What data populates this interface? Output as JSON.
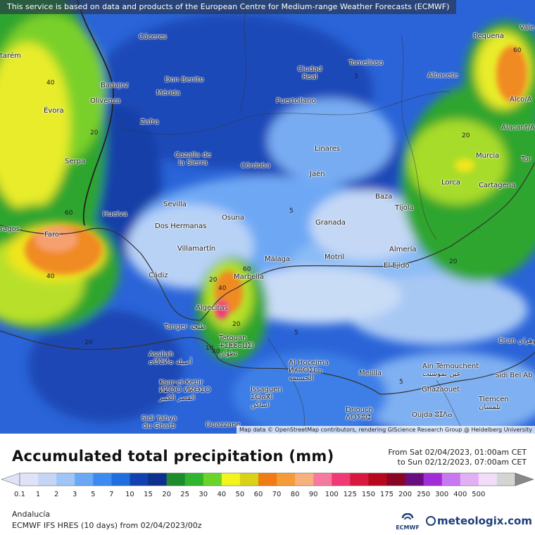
{
  "top_note": "This service is based on data and products of the European Centre for Medium-range Weather Forecasts (ECMWF)",
  "map": {
    "attribution": "Map data © OpenStreetMap contributors, rendering GIScience Research Group @ Heidelberg University",
    "cities": [
      {
        "name": "Cáceres"
      },
      {
        "name": "Requena"
      },
      {
        "name": "Vale"
      },
      {
        "name": "Tomelloso"
      },
      {
        "name": "Ciudad Real"
      },
      {
        "name": "Albacete"
      },
      {
        "name": "Badajoz"
      },
      {
        "name": "Don Benito"
      },
      {
        "name": "Mérida"
      },
      {
        "name": "Olivenza"
      },
      {
        "name": "Évora"
      },
      {
        "name": "Puertollano"
      },
      {
        "name": "Alco/A"
      },
      {
        "name": "Zafra"
      },
      {
        "name": "Alacant/A"
      },
      {
        "name": "Linares"
      },
      {
        "name": "Murcia"
      },
      {
        "name": "Tor"
      },
      {
        "name": "Serpa"
      },
      {
        "name": "Cazalla de la Sierra"
      },
      {
        "name": "Córdoba"
      },
      {
        "name": "Jaén"
      },
      {
        "name": "Lorca"
      },
      {
        "name": "Cartagena"
      },
      {
        "name": "Baza"
      },
      {
        "name": "Huelva"
      },
      {
        "name": "Sevilla"
      },
      {
        "name": "Tíjola"
      },
      {
        "name": "Faro"
      },
      {
        "name": "Dos Hermanas"
      },
      {
        "name": "Osuna"
      },
      {
        "name": "Granada"
      },
      {
        "name": "ragos"
      },
      {
        "name": "Almería"
      },
      {
        "name": "Villamartín"
      },
      {
        "name": "Motril"
      },
      {
        "name": "Málaga"
      },
      {
        "name": "El Ejido"
      },
      {
        "name": "Cádiz"
      },
      {
        "name": "Marbella"
      },
      {
        "name": "Algeciras"
      },
      {
        "name": "Tanger طنجة"
      },
      {
        "name": "Tetouan ⵜⵉⵟⵟⴰⵡⵉⵏ تطوان"
      },
      {
        "name": "Oran وهران"
      },
      {
        "name": "Assilah ⴰⵚⵉⵍⴰ أصيلة"
      },
      {
        "name": "Al Hoceima ⵍⵃⵓⵙⵉⵎⴰ الحسيمة"
      },
      {
        "name": "Melilla"
      },
      {
        "name": "Ain Témouchent عين تموشنت"
      },
      {
        "name": "Sidi Bel Ab"
      },
      {
        "name": "Ksar-el-Kebir ⵍⵇⵚⵔ ⵍⴽⴱⵉⵔ القصر الكبير"
      },
      {
        "name": "Issaguen ⵉⵙⴰⴳⵏ اساكن"
      },
      {
        "name": "Ghazaouet"
      },
      {
        "name": "Tlemcen تلمسان"
      },
      {
        "name": "Sidi Yahya du Gharb"
      },
      {
        "name": "Driouch ⴷⵔⵢⵓⵛ"
      },
      {
        "name": "Ouazzane"
      },
      {
        "name": "Oujda ⵓⵊⴷⴰ"
      },
      {
        "name": "tarém"
      }
    ],
    "contour_labels": [
      "60",
      "40",
      "5",
      "60",
      "40",
      "20",
      "20",
      "60",
      "40",
      "20",
      "5",
      "20",
      "20",
      "5",
      "20",
      "10",
      "40",
      "5"
    ]
  },
  "title": "Accumulated total precipitation (mm)",
  "period_from": "From Sat 02/04/2023, 01:00am CET",
  "period_to": "to Sun 02/12/2023, 07:00am CET",
  "legend": {
    "labels": [
      "0.1",
      "1",
      "2",
      "3",
      "5",
      "7",
      "10",
      "15",
      "20",
      "25",
      "30",
      "40",
      "50",
      "60",
      "70",
      "80",
      "90",
      "100",
      "125",
      "150",
      "175",
      "200",
      "250",
      "300",
      "400",
      "500"
    ],
    "colors": [
      "#dfe3f6",
      "#c4d6f6",
      "#9ec5f6",
      "#6aa8f4",
      "#3d8bf0",
      "#1f6fe0",
      "#1240b0",
      "#0f2f8c",
      "#1f8a2e",
      "#2fb52f",
      "#6bd42a",
      "#f3f31e",
      "#d9d21a",
      "#f07d14",
      "#f69a3a",
      "#f8b07e",
      "#f67aa0",
      "#f03a78",
      "#d8183e",
      "#b5081e",
      "#8a0424",
      "#6a0d7e",
      "#a12bd4",
      "#c878f0",
      "#e1b0f4",
      "#f0ddf8",
      "#d4d4d4"
    ]
  },
  "region": "Andalucía",
  "model": "ECMWF IFS HRES (10 days) from 02/04/2023/00z",
  "ecmwf_logo": "ECMWF",
  "brand": "meteologix.com"
}
